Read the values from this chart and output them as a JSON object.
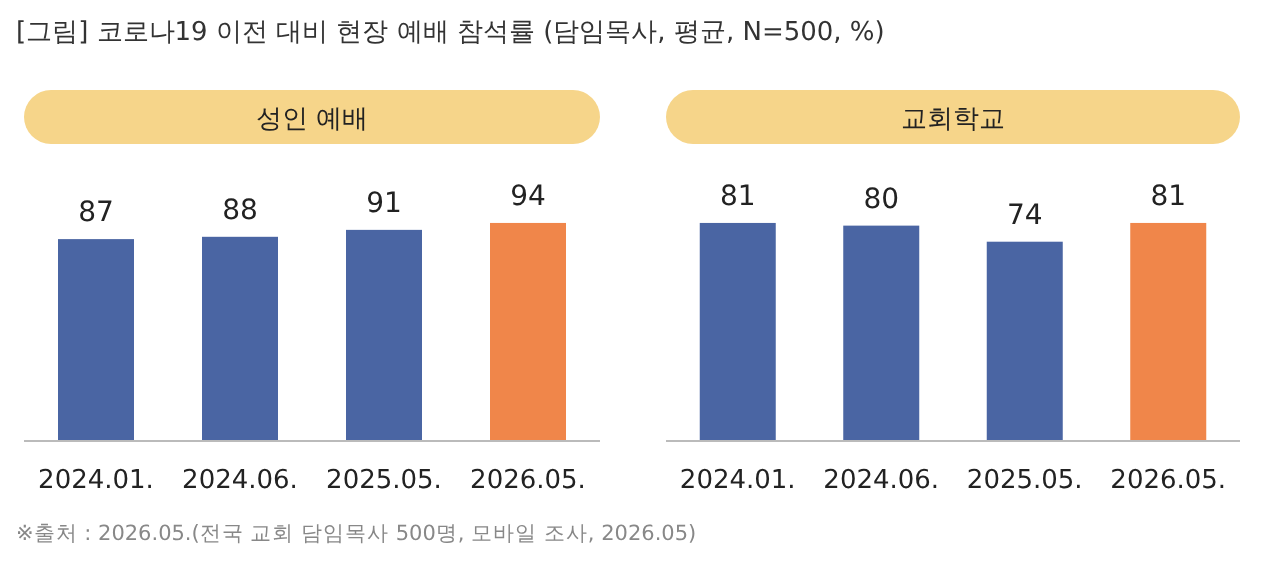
{
  "chart_data": [
    {
      "type": "bar",
      "title": "성인 예배",
      "categories": [
        "2024.01.",
        "2024.06.",
        "2025.05.",
        "2026.05."
      ],
      "values": [
        87,
        88,
        91,
        94
      ],
      "colors": [
        "#4a65a3",
        "#4a65a3",
        "#4a65a3",
        "#f0864a"
      ],
      "data_labels": true,
      "annotations": [
        "[그림] 코로나19 이전 대비 현장 예배 참석률 (담임목사, 평균, N=500, %)"
      ]
    },
    {
      "type": "bar",
      "title": "교회학교",
      "categories": [
        "2024.01.",
        "2024.06.",
        "2025.05.",
        "2026.05."
      ],
      "values": [
        81,
        80,
        74,
        81
      ],
      "colors": [
        "#4a65a3",
        "#4a65a3",
        "#4a65a3",
        "#f0864a"
      ],
      "data_labels": true,
      "annotations": [
        "※출처 : 2026.05.(전국 교회 담임목사 500명, 모바일 조사, 2026.05)"
      ]
    }
  ]
}
